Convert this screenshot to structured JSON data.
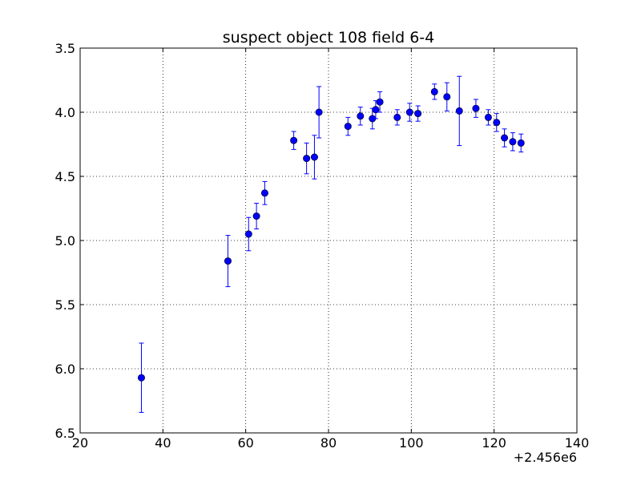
{
  "chart_data": {
    "type": "scatter",
    "title": "suspect object 108 field 6-4",
    "xlabel": "",
    "ylabel": "",
    "x_offset_label": "+2.456e6",
    "xlim": [
      20,
      140
    ],
    "ylim": [
      6.5,
      3.5
    ],
    "y_inverted": true,
    "grid": true,
    "marker_color": "#0000ff",
    "x_ticks": [
      "20",
      "40",
      "60",
      "80",
      "100",
      "120",
      "140"
    ],
    "y_ticks": [
      "3.5",
      "4.0",
      "4.5",
      "5.0",
      "5.5",
      "6.0",
      "6.5"
    ],
    "series": [
      {
        "points": [
          {
            "x": 34.8,
            "y": 6.07,
            "err": 0.27
          },
          {
            "x": 55.7,
            "y": 5.16,
            "err": 0.2
          },
          {
            "x": 60.7,
            "y": 4.95,
            "err": 0.13
          },
          {
            "x": 62.6,
            "y": 4.81,
            "err": 0.1
          },
          {
            "x": 64.6,
            "y": 4.63,
            "err": 0.09
          },
          {
            "x": 71.6,
            "y": 4.22,
            "err": 0.07
          },
          {
            "x": 74.7,
            "y": 4.36,
            "err": 0.12
          },
          {
            "x": 76.6,
            "y": 4.35,
            "err": 0.17
          },
          {
            "x": 77.7,
            "y": 4.0,
            "err": 0.2
          },
          {
            "x": 84.7,
            "y": 4.11,
            "err": 0.07
          },
          {
            "x": 87.7,
            "y": 4.03,
            "err": 0.07
          },
          {
            "x": 90.6,
            "y": 4.05,
            "err": 0.08
          },
          {
            "x": 91.4,
            "y": 3.98,
            "err": 0.07
          },
          {
            "x": 92.4,
            "y": 3.92,
            "err": 0.08
          },
          {
            "x": 96.6,
            "y": 4.04,
            "err": 0.06
          },
          {
            "x": 99.6,
            "y": 4.0,
            "err": 0.07
          },
          {
            "x": 101.6,
            "y": 4.01,
            "err": 0.06
          },
          {
            "x": 105.6,
            "y": 3.84,
            "err": 0.06
          },
          {
            "x": 108.6,
            "y": 3.88,
            "err": 0.11
          },
          {
            "x": 111.6,
            "y": 3.99,
            "err": 0.27
          },
          {
            "x": 115.6,
            "y": 3.97,
            "err": 0.07
          },
          {
            "x": 118.6,
            "y": 4.04,
            "err": 0.06
          },
          {
            "x": 120.6,
            "y": 4.08,
            "err": 0.07
          },
          {
            "x": 122.5,
            "y": 4.2,
            "err": 0.07
          },
          {
            "x": 124.5,
            "y": 4.23,
            "err": 0.07
          },
          {
            "x": 126.5,
            "y": 4.24,
            "err": 0.07
          }
        ]
      }
    ]
  }
}
